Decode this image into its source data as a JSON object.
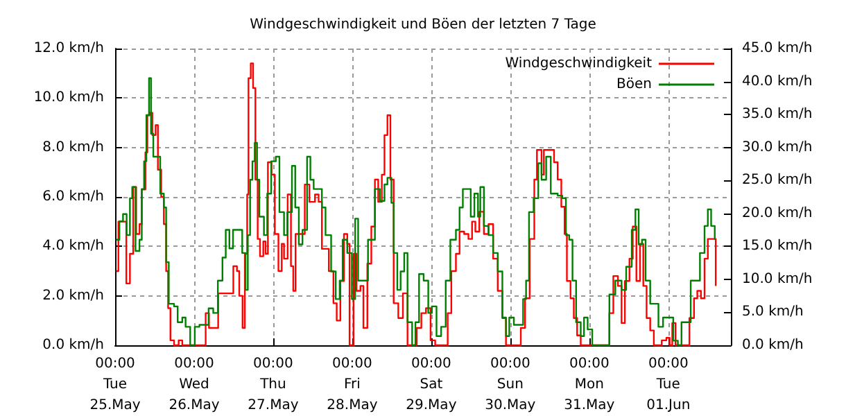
{
  "chart_data": {
    "type": "step",
    "title": "Windgeschwindigkeit und Böen der letzten 7 Tage",
    "xlim": [
      "--05-25T00:00",
      "--06-01T19:00"
    ],
    "xticks": [
      {
        "value": "--05-25T00:00",
        "label": "00:00\nTue\n25.May"
      },
      {
        "value": "--05-26T00:00",
        "label": "00:00\nWed\n26.May"
      },
      {
        "value": "--05-27T00:00",
        "label": "00:00\nThu\n27.May"
      },
      {
        "value": "--05-28T00:00",
        "label": "00:00\nFri\n28.May"
      },
      {
        "value": "--05-29T00:00",
        "label": "00:00\nSat\n29.May"
      },
      {
        "value": "--05-30T00:00",
        "label": "00:00\nSun\n30.May"
      },
      {
        "value": "--05-31T00:00",
        "label": "00:00\nMon\n31.May"
      },
      {
        "value": "--06-01T00:00",
        "label": "00:00\nTue\n01.Jun"
      }
    ],
    "ylim": [
      0,
      12
    ],
    "yticks": [
      {
        "value": 0,
        "label": "0.0 km/h"
      },
      {
        "value": 2,
        "label": "2.0 km/h"
      },
      {
        "value": 4,
        "label": "4.0 km/h"
      },
      {
        "value": 6,
        "label": "6.0 km/h"
      },
      {
        "value": 8,
        "label": "8.0 km/h"
      },
      {
        "value": 10,
        "label": "10.0 km/h"
      },
      {
        "value": 12,
        "label": "12.0 km/h"
      }
    ],
    "y2lim": [
      0,
      45
    ],
    "y2ticks": [
      {
        "value": 0,
        "label": "0.0 km/h"
      },
      {
        "value": 5,
        "label": "5.0 km/h"
      },
      {
        "value": 10,
        "label": "10.0 km/h"
      },
      {
        "value": 15,
        "label": "15.0 km/h"
      },
      {
        "value": 20,
        "label": "20.0 km/h"
      },
      {
        "value": 25,
        "label": "25.0 km/h"
      },
      {
        "value": 30,
        "label": "30.0 km/h"
      },
      {
        "value": 35,
        "label": "35.0 km/h"
      },
      {
        "value": 40,
        "label": "40.0 km/h"
      },
      {
        "value": 45,
        "label": "45.0 km/h"
      }
    ],
    "grid": true,
    "legend": "top right",
    "series": [
      {
        "name": "Windgeschwindigkeit",
        "color": "#ff0000",
        "x": [
          "--05-25T00:18",
          "--05-25T01:00",
          "--05-25T02:24",
          "--05-25T03:24",
          "--05-25T04:30",
          "--05-25T05:30",
          "--05-25T06:24",
          "--05-25T07:24",
          "--05-25T08:06",
          "--05-25T09:12",
          "--05-25T09:48",
          "--05-25T10:30",
          "--05-25T11:18",
          "--05-25T12:18",
          "--05-25T13:00",
          "--05-25T14:00",
          "--05-25T14:48",
          "--05-25T15:30",
          "--05-25T16:06",
          "--05-25T16:48",
          "--05-25T17:54",
          "--05-25T19:18",
          "--05-25T20:24",
          "--05-25T22:48",
          "--05-26T02:06",
          "--05-26T03:30",
          "--05-26T04:30",
          "--05-26T06:42",
          "--05-26T07:18",
          "--05-26T11:12",
          "--05-26T11:54",
          "--05-26T13:00",
          "--05-26T13:42",
          "--05-26T14:42",
          "--05-26T15:24",
          "--05-26T16:06",
          "--05-26T16:30",
          "--05-26T17:12",
          "--05-26T17:54",
          "--05-26T18:36",
          "--05-26T19:18",
          "--05-26T20:00",
          "--05-26T21:00",
          "--05-26T21:42",
          "--05-26T22:24",
          "--05-26T23:30",
          "--05-27T00:30",
          "--05-27T01:36",
          "--05-27T02:36",
          "--05-27T03:18",
          "--05-27T04:24",
          "--05-27T05:24",
          "--05-27T06:06",
          "--05-27T06:48",
          "--05-27T07:54",
          "--05-27T09:36",
          "--05-27T11:00",
          "--05-27T12:42",
          "--05-27T13:48",
          "--05-27T14:48",
          "--05-27T15:30",
          "--05-27T16:54",
          "--05-27T18:18",
          "--05-27T19:18",
          "--05-27T20:24",
          "--05-27T21:30",
          "--05-27T22:30",
          "--05-27T23:12",
          "--05-28T00:24",
          "--05-28T01:18",
          "--05-28T02:30",
          "--05-28T03:24",
          "--05-28T04:36",
          "--05-28T05:48",
          "--05-28T06:54",
          "--05-28T07:54",
          "--05-28T09:00",
          "--05-28T09:48",
          "--05-28T10:42",
          "--05-28T11:36",
          "--05-28T12:36",
          "--05-28T14:00",
          "--05-28T15:24",
          "--05-28T16:48",
          "--05-28T19:36",
          "--05-28T21:00",
          "--05-28T22:24",
          "--05-28T23:48",
          "--05-29T01:12",
          "--05-29T03:36",
          "--05-29T05:00",
          "--05-29T06:06",
          "--05-29T07:30",
          "--05-29T08:36",
          "--05-29T10:00",
          "--05-29T11:18",
          "--05-29T12:24",
          "--05-29T13:24",
          "--05-29T14:36",
          "--05-29T16:00",
          "--05-29T17:24",
          "--05-29T18:48",
          "--05-29T20:12",
          "--05-29T21:36",
          "--05-29T22:42",
          "--05-30T01:48",
          "--05-30T03:12",
          "--05-30T04:30",
          "--05-30T05:54",
          "--05-30T07:18",
          "--05-30T08:06",
          "--05-30T09:30",
          "--05-30T10:12",
          "--05-30T12:18",
          "--05-30T13:18",
          "--05-30T14:24",
          "--05-30T15:30",
          "--05-30T16:30",
          "--05-30T17:12",
          "--05-30T18:18",
          "--05-30T19:18",
          "--05-30T20:18",
          "--05-30T21:24",
          "--05-31T05:06",
          "--05-31T06:06",
          "--05-31T07:18",
          "--05-31T08:42",
          "--05-31T09:48",
          "--05-31T10:48",
          "--05-31T12:12",
          "--05-31T13:12",
          "--05-31T14:18",
          "--05-31T15:24",
          "--05-31T16:24",
          "--05-31T17:24",
          "--05-31T18:30",
          "--05-31T19:36",
          "--05-31T22:00",
          "--05-31T23:24",
          "--06-01T00:24",
          "--06-01T01:12",
          "--06-01T02:12",
          "--06-01T05:42",
          "--06-01T06:24",
          "--06-01T07:48",
          "--06-01T08:48",
          "--06-01T09:54",
          "--06-01T11:00",
          "--06-01T12:00",
          "--06-01T13:24",
          "--06-01T14:24"
        ],
        "values": [
          3.0,
          5.0,
          5.0,
          2.5,
          3.7,
          6.4,
          4.5,
          4.9,
          6.3,
          7.8,
          9.3,
          9.4,
          8.5,
          8.9,
          7.1,
          6.0,
          4.9,
          3.0,
          1.5,
          0.2,
          0.0,
          0.2,
          0.0,
          0.0,
          0.0,
          1.3,
          0.7,
          0.7,
          2.1,
          2.1,
          3.2,
          3.0,
          2.0,
          0.7,
          3.7,
          6.1,
          10.8,
          11.4,
          10.4,
          6.7,
          4.3,
          3.6,
          4.2,
          3.7,
          7.4,
          6.9,
          4.5,
          3.0,
          4.1,
          3.5,
          6.1,
          3.2,
          2.2,
          4.5,
          4.5,
          6.5,
          5.8,
          6.1,
          5.8,
          3.9,
          3.9,
          3.0,
          1.7,
          1.0,
          2.6,
          4.5,
          4.1,
          0.0,
          3.7,
          2.2,
          2.4,
          0.7,
          3.3,
          4.8,
          6.7,
          5.8,
          6.9,
          8.5,
          9.3,
          6.7,
          1.7,
          1.1,
          2.1,
          0.0,
          0.7,
          1.3,
          1.5,
          0.2,
          0.0,
          0.0,
          1.3,
          3.0,
          3.7,
          4.6,
          4.5,
          4.3,
          5.0,
          4.6,
          5.4,
          4.5,
          4.9,
          3.5,
          2.2,
          1.1,
          0.0,
          0.0,
          0.7,
          1.9,
          4.3,
          6.7,
          7.9,
          6.9,
          7.9,
          7.9,
          7.4,
          6.7,
          5.6,
          4.5,
          2.6,
          1.9,
          1.1,
          0.4,
          0.0,
          0.0,
          1.3,
          2.8,
          2.4,
          0.9,
          2.6,
          3.5,
          4.8,
          2.6,
          4.1,
          2.4,
          1.1,
          0.6,
          0.0,
          0.2,
          0.3,
          0.0,
          0.9,
          0.0,
          0.0,
          1.1,
          1.9,
          2.2,
          1.9,
          3.5,
          4.3,
          4.3,
          2.4
        ]
      },
      {
        "name": "Böen",
        "color": "#008000",
        "axis": "y2",
        "x": [
          "--05-25T00:18",
          "--05-25T01:18",
          "--05-25T02:24",
          "--05-25T03:30",
          "--05-25T04:30",
          "--05-25T05:12",
          "--05-25T06:12",
          "--05-25T07:24",
          "--05-25T08:06",
          "--05-25T08:48",
          "--05-25T09:30",
          "--05-25T10:18",
          "--05-25T10:54",
          "--05-25T11:36",
          "--05-25T13:00",
          "--05-25T13:42",
          "--05-25T14:48",
          "--05-25T15:30",
          "--05-25T16:18",
          "--05-25T17:54",
          "--05-25T19:00",
          "--05-25T20:24",
          "--05-25T21:24",
          "--05-25T22:48",
          "--05-26T00:12",
          "--05-26T01:36",
          "--05-26T03:24",
          "--05-26T04:24",
          "--05-26T05:48",
          "--05-26T07:12",
          "--05-26T08:36",
          "--05-26T09:36",
          "--05-26T10:42",
          "--05-26T11:48",
          "--05-26T13:30",
          "--05-26T14:36",
          "--05-26T15:36",
          "--05-26T16:18",
          "--05-26T17:00",
          "--05-26T17:42",
          "--05-26T18:24",
          "--05-26T19:06",
          "--05-26T19:48",
          "--05-26T21:12",
          "--05-26T22:12",
          "--05-26T23:24",
          "--05-27T00:48",
          "--05-27T01:54",
          "--05-27T03:18",
          "--05-27T04:18",
          "--05-27T05:42",
          "--05-27T06:42",
          "--05-27T07:48",
          "--05-27T08:54",
          "--05-27T10:18",
          "--05-27T11:18",
          "--05-27T12:18",
          "--05-27T13:42",
          "--05-27T14:48",
          "--05-27T15:54",
          "--05-27T17:36",
          "--05-27T19:00",
          "--05-27T20:12",
          "--05-27T21:06",
          "--05-27T22:30",
          "--05-27T23:54",
          "--05-28T00:54",
          "--05-28T01:48",
          "--05-28T03:24",
          "--05-28T04:48",
          "--05-28T06:00",
          "--05-28T06:54",
          "--05-28T08:24",
          "--05-28T09:48",
          "--05-28T10:42",
          "--05-28T11:54",
          "--05-28T12:36",
          "--05-28T13:42",
          "--05-28T14:42",
          "--05-28T15:48",
          "--05-28T16:48",
          "--05-28T18:12",
          "--05-28T19:12",
          "--05-28T20:18",
          "--05-28T21:42",
          "--05-28T23:06",
          "--05-29T00:12",
          "--05-29T01:36",
          "--05-29T03:00",
          "--05-29T04:24",
          "--05-29T05:48",
          "--05-29T07:30",
          "--05-29T08:36",
          "--05-29T09:36",
          "--05-29T11:00",
          "--05-29T12:00",
          "--05-29T13:06",
          "--05-29T14:12",
          "--05-29T14:54",
          "--05-29T16:00",
          "--05-29T17:24",
          "--05-29T18:48",
          "--05-29T20:12",
          "--05-29T21:36",
          "--05-29T22:42",
          "--05-29T23:42",
          "--05-30T01:06",
          "--05-30T02:30",
          "--05-30T03:54",
          "--05-30T04:48",
          "--05-30T05:42",
          "--05-30T07:06",
          "--05-30T08:30",
          "--05-30T09:30",
          "--05-30T10:54",
          "--05-30T12:18",
          "--05-30T14:24",
          "--05-30T15:48",
          "--05-30T16:54",
          "--05-30T17:54",
          "--05-30T18:54",
          "--05-30T20:00",
          "--05-30T21:24",
          "--05-30T22:24",
          "--05-30T23:30",
          "--05-31T00:54",
          "--05-31T05:06",
          "--05-31T06:06",
          "--05-31T07:54",
          "--05-31T09:48",
          "--05-31T11:12",
          "--05-31T12:54",
          "--05-31T14:00",
          "--05-31T15:00",
          "--05-31T16:00",
          "--05-31T17:06",
          "--05-31T18:30",
          "--05-31T19:54",
          "--05-31T21:00",
          "--05-31T22:24",
          "--06-01T00:06",
          "--06-01T01:30",
          "--06-01T02:54",
          "--06-01T04:00",
          "--06-01T05:24",
          "--06-01T06:48",
          "--06-01T08:12",
          "--06-01T09:36",
          "--06-01T11:00",
          "--06-01T12:00",
          "--06-01T13:00",
          "--06-01T14:06"
        ],
        "values": [
          16.0,
          18.8,
          19.9,
          16.7,
          22.3,
          24.0,
          14.3,
          16.0,
          23.7,
          27.9,
          34.9,
          40.5,
          32.1,
          28.6,
          28.6,
          23.0,
          20.9,
          12.6,
          6.3,
          5.9,
          3.5,
          4.2,
          2.8,
          0.0,
          2.8,
          3.1,
          3.1,
          5.6,
          4.9,
          9.8,
          13.3,
          17.5,
          14.7,
          17.5,
          17.5,
          14.0,
          8.4,
          16.7,
          25.1,
          27.9,
          30.7,
          25.1,
          19.5,
          16.7,
          23.0,
          27.9,
          28.6,
          20.2,
          16.7,
          20.2,
          27.2,
          20.9,
          15.3,
          17.5,
          28.6,
          25.1,
          23.7,
          23.7,
          20.9,
          16.7,
          11.2,
          7.0,
          9.8,
          16.0,
          14.0,
          7.0,
          19.2,
          9.8,
          9.8,
          16.0,
          16.0,
          23.7,
          21.9,
          24.4,
          25.4,
          21.6,
          14.0,
          8.4,
          11.2,
          14.0,
          3.5,
          0.0,
          3.5,
          10.8,
          9.8,
          4.9,
          5.9,
          1.4,
          2.8,
          9.8,
          16.0,
          17.5,
          20.9,
          23.7,
          23.7,
          19.5,
          23.0,
          19.5,
          24.0,
          18.1,
          16.7,
          14.0,
          11.2,
          4.2,
          1.4,
          4.2,
          3.1,
          3.1,
          7.0,
          9.8,
          20.2,
          22.3,
          27.6,
          25.1,
          28.6,
          23.0,
          22.7,
          22.3,
          16.7,
          16.0,
          9.8,
          3.5,
          1.4,
          4.2,
          2.4,
          0.0,
          0.0,
          7.7,
          9.8,
          8.4,
          11.9,
          17.5,
          20.6,
          15.3,
          16.0,
          9.8,
          6.3,
          6.3,
          2.8,
          4.2,
          4.2,
          0.7,
          0.0,
          3.5,
          3.5,
          9.8,
          9.8,
          14.0,
          18.1,
          20.6,
          18.1,
          16.0
        ]
      }
    ]
  }
}
